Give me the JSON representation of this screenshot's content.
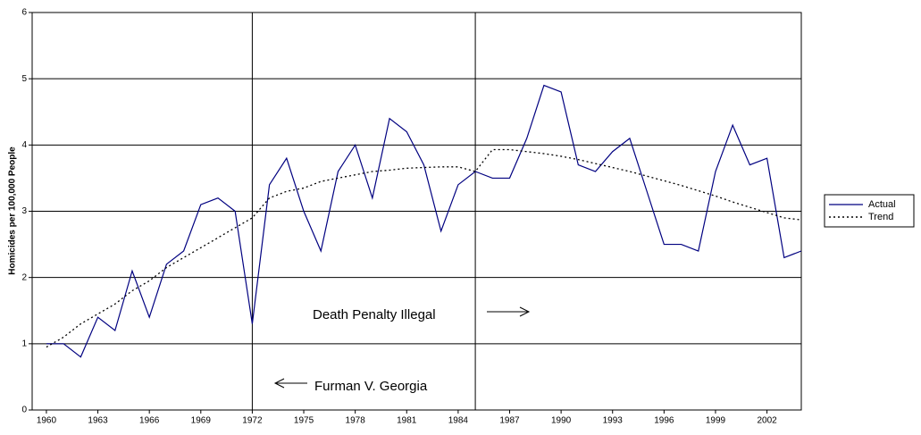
{
  "chart_data": {
    "type": "line",
    "y_label": "Homicides per 100,000 People",
    "x": [
      1960,
      1961,
      1962,
      1963,
      1964,
      1965,
      1966,
      1967,
      1968,
      1969,
      1970,
      1971,
      1972,
      1973,
      1974,
      1975,
      1976,
      1977,
      1978,
      1979,
      1980,
      1981,
      1982,
      1983,
      1984,
      1985,
      1986,
      1987,
      1988,
      1989,
      1990,
      1991,
      1992,
      1993,
      1994,
      1995,
      1996,
      1997,
      1998,
      1999,
      2000,
      2001,
      2002,
      2003,
      2004
    ],
    "series": [
      {
        "name": "Actual",
        "color": "#000080",
        "dash": false,
        "values": [
          1.0,
          1.0,
          0.8,
          1.4,
          1.2,
          2.1,
          1.4,
          2.2,
          2.4,
          3.1,
          3.2,
          3.0,
          1.3,
          3.4,
          3.8,
          3.0,
          2.4,
          3.6,
          4.0,
          3.2,
          4.4,
          4.2,
          3.7,
          2.7,
          3.4,
          3.6,
          3.5,
          3.5,
          4.1,
          4.9,
          4.8,
          3.7,
          3.6,
          3.9,
          4.1,
          3.3,
          2.5,
          2.5,
          2.4,
          3.6,
          4.3,
          3.7,
          3.8,
          2.3,
          2.4
        ]
      },
      {
        "name": "Trend",
        "color": "#000000",
        "dash": true,
        "values": [
          0.95,
          1.1,
          1.3,
          1.45,
          1.6,
          1.8,
          1.95,
          2.15,
          2.3,
          2.45,
          2.6,
          2.75,
          2.9,
          3.2,
          3.3,
          3.35,
          3.45,
          3.5,
          3.55,
          3.6,
          3.62,
          3.65,
          3.66,
          3.67,
          3.67,
          3.6,
          3.93,
          3.93,
          3.9,
          3.87,
          3.83,
          3.78,
          3.72,
          3.66,
          3.6,
          3.53,
          3.46,
          3.39,
          3.31,
          3.23,
          3.14,
          3.06,
          2.98,
          2.9,
          2.87
        ]
      }
    ],
    "xlim": [
      1959.17,
      2004
    ],
    "xticks": [
      1960,
      1963,
      1966,
      1969,
      1972,
      1975,
      1978,
      1981,
      1984,
      1987,
      1990,
      1993,
      1996,
      1999,
      2002
    ],
    "ylim": [
      0,
      6
    ],
    "yticks": [
      0,
      1,
      2,
      3,
      4,
      5,
      6
    ],
    "grid": true,
    "vlines": [
      1972,
      1985
    ],
    "annotations": [
      "Death Penalty Illegal",
      "Furman V. Georgia"
    ],
    "legend": "right"
  }
}
